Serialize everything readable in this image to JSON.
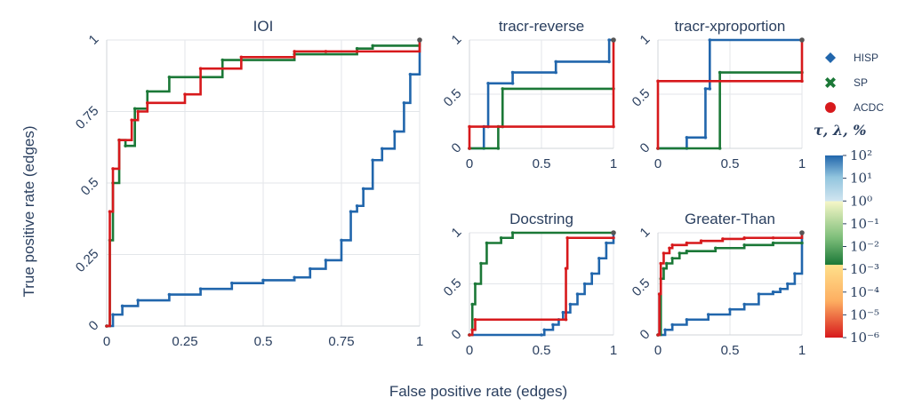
{
  "figure": {
    "x_title": "False positive rate (edges)",
    "y_title": "True positive rate (edges)",
    "legend": [
      {
        "name": "HISP",
        "marker": "diamond",
        "color": "#2166ac"
      },
      {
        "name": "SP",
        "marker": "x",
        "color": "#1b7837"
      },
      {
        "name": "ACDC",
        "marker": "circle",
        "color": "#d7191c"
      }
    ],
    "colorbar": {
      "title": "τ, λ, %",
      "ticks": [
        "10²",
        "10¹",
        "10⁰",
        "10⁻¹",
        "10⁻²",
        "10⁻³",
        "10⁻⁴",
        "10⁻⁵",
        "10⁻⁶"
      ],
      "tick_exponents": [
        2,
        1,
        0,
        -1,
        -2,
        -3,
        -4,
        -5,
        -6
      ]
    },
    "colors": {
      "hisp": "#2166ac",
      "sp": "#1b7837",
      "acdc": "#d7191c"
    }
  },
  "chart_data": [
    {
      "type": "line",
      "title": "IOI",
      "xlim": [
        0,
        1
      ],
      "ylim": [
        0,
        1
      ],
      "xticks": [
        "0",
        "0.25",
        "0.5",
        "0.75",
        "1"
      ],
      "yticks": [
        "0",
        "0.25",
        "0.5",
        "0.75",
        "1"
      ],
      "series": [
        {
          "name": "HISP",
          "x": [
            0,
            0.02,
            0.05,
            0.1,
            0.2,
            0.3,
            0.4,
            0.5,
            0.6,
            0.65,
            0.7,
            0.75,
            0.78,
            0.8,
            0.82,
            0.85,
            0.88,
            0.92,
            0.95,
            0.97,
            1.0
          ],
          "y": [
            0,
            0.04,
            0.07,
            0.09,
            0.11,
            0.13,
            0.15,
            0.16,
            0.17,
            0.2,
            0.23,
            0.3,
            0.4,
            0.42,
            0.48,
            0.58,
            0.62,
            0.68,
            0.78,
            0.88,
            1.0
          ]
        },
        {
          "name": "SP",
          "x": [
            0,
            0.01,
            0.02,
            0.04,
            0.06,
            0.09,
            0.13,
            0.2,
            0.37,
            0.6,
            0.8,
            0.85,
            1.0
          ],
          "y": [
            0,
            0.3,
            0.5,
            0.65,
            0.63,
            0.76,
            0.82,
            0.87,
            0.93,
            0.95,
            0.97,
            0.98,
            1.0
          ]
        },
        {
          "name": "ACDC",
          "x": [
            0,
            0.01,
            0.02,
            0.04,
            0.08,
            0.1,
            0.13,
            0.25,
            0.3,
            0.43,
            0.6,
            0.7,
            0.8,
            1.0
          ],
          "y": [
            0,
            0.4,
            0.55,
            0.65,
            0.72,
            0.75,
            0.78,
            0.81,
            0.9,
            0.94,
            0.96,
            0.96,
            0.96,
            1.0
          ]
        }
      ]
    },
    {
      "type": "line",
      "title": "tracr-reverse",
      "xlim": [
        0,
        1
      ],
      "ylim": [
        0,
        1
      ],
      "xticks": [
        "0",
        "0.5",
        "1"
      ],
      "yticks": [
        "0",
        "0.5",
        "1"
      ],
      "series": [
        {
          "name": "HISP",
          "x": [
            0,
            0.1,
            0.1,
            0.13,
            0.13,
            0.3,
            0.3,
            0.6,
            0.6,
            0.97,
            0.97,
            1.0
          ],
          "y": [
            0,
            0,
            0.2,
            0.2,
            0.6,
            0.6,
            0.7,
            0.7,
            0.8,
            0.8,
            1.0,
            1.0
          ]
        },
        {
          "name": "SP",
          "x": [
            0,
            0.2,
            0.2,
            0.23,
            0.23,
            1.0
          ],
          "y": [
            0,
            0,
            0.2,
            0.2,
            0.55,
            0.55
          ]
        },
        {
          "name": "ACDC",
          "x": [
            0,
            0,
            1.0,
            1.0
          ],
          "y": [
            0,
            0.2,
            0.2,
            1.0
          ]
        }
      ]
    },
    {
      "type": "line",
      "title": "tracr-xproportion",
      "xlim": [
        0,
        1
      ],
      "ylim": [
        0,
        1
      ],
      "xticks": [
        "0",
        "0.5",
        "1"
      ],
      "yticks": [
        "0",
        "0.5",
        "1"
      ],
      "series": [
        {
          "name": "HISP",
          "x": [
            0,
            0.2,
            0.2,
            0.33,
            0.33,
            0.36,
            0.36,
            1.0,
            1.0
          ],
          "y": [
            0,
            0,
            0.1,
            0.1,
            0.55,
            0.55,
            1.0,
            1.0,
            1.0
          ]
        },
        {
          "name": "SP",
          "x": [
            0,
            0.43,
            0.43,
            1.0
          ],
          "y": [
            0,
            0,
            0.7,
            0.7
          ]
        },
        {
          "name": "ACDC",
          "x": [
            0,
            0,
            1.0,
            1.0
          ],
          "y": [
            0,
            0.62,
            0.62,
            1.0
          ]
        }
      ]
    },
    {
      "type": "line",
      "title": "Docstring",
      "xlim": [
        0,
        1
      ],
      "ylim": [
        0,
        1
      ],
      "xticks": [
        "0",
        "0.5",
        "1"
      ],
      "yticks": [
        "0",
        "0.5",
        "1"
      ],
      "series": [
        {
          "name": "HISP",
          "x": [
            0,
            0.5,
            0.52,
            0.58,
            0.62,
            0.65,
            0.7,
            0.75,
            0.8,
            0.85,
            0.9,
            0.95,
            1.0
          ],
          "y": [
            0,
            0,
            0.05,
            0.1,
            0.15,
            0.22,
            0.3,
            0.4,
            0.5,
            0.6,
            0.75,
            0.9,
            1.0
          ]
        },
        {
          "name": "SP",
          "x": [
            0,
            0.02,
            0.04,
            0.08,
            0.12,
            0.22,
            0.3,
            1.0
          ],
          "y": [
            0,
            0.3,
            0.5,
            0.7,
            0.9,
            0.95,
            1.0,
            1.0
          ]
        },
        {
          "name": "ACDC",
          "x": [
            0,
            0.02,
            0.04,
            0.67,
            0.67,
            0.68,
            1.0
          ],
          "y": [
            0,
            0.05,
            0.15,
            0.15,
            0.65,
            0.95,
            0.95
          ]
        }
      ]
    },
    {
      "type": "line",
      "title": "Greater-Than",
      "xlim": [
        0,
        1
      ],
      "ylim": [
        0,
        1
      ],
      "xticks": [
        "0",
        "0.5",
        "1"
      ],
      "yticks": [
        "0",
        "0.5",
        "1"
      ],
      "series": [
        {
          "name": "HISP",
          "x": [
            0,
            0.05,
            0.1,
            0.2,
            0.35,
            0.5,
            0.6,
            0.7,
            0.8,
            0.85,
            0.9,
            0.95,
            1.0
          ],
          "y": [
            0,
            0.05,
            0.1,
            0.15,
            0.2,
            0.25,
            0.3,
            0.4,
            0.42,
            0.45,
            0.5,
            0.6,
            1.0
          ]
        },
        {
          "name": "SP",
          "x": [
            0,
            0.02,
            0.04,
            0.06,
            0.1,
            0.15,
            0.2,
            0.4,
            0.6,
            0.8,
            1.0
          ],
          "y": [
            0,
            0.55,
            0.65,
            0.7,
            0.75,
            0.8,
            0.82,
            0.85,
            0.88,
            0.9,
            0.9
          ]
        },
        {
          "name": "ACDC",
          "x": [
            0,
            0.01,
            0.02,
            0.04,
            0.08,
            0.1,
            0.2,
            0.3,
            0.45,
            0.6,
            0.8,
            1.0
          ],
          "y": [
            0,
            0.4,
            0.7,
            0.8,
            0.85,
            0.88,
            0.9,
            0.92,
            0.94,
            0.95,
            0.95,
            1.0
          ]
        }
      ]
    }
  ]
}
